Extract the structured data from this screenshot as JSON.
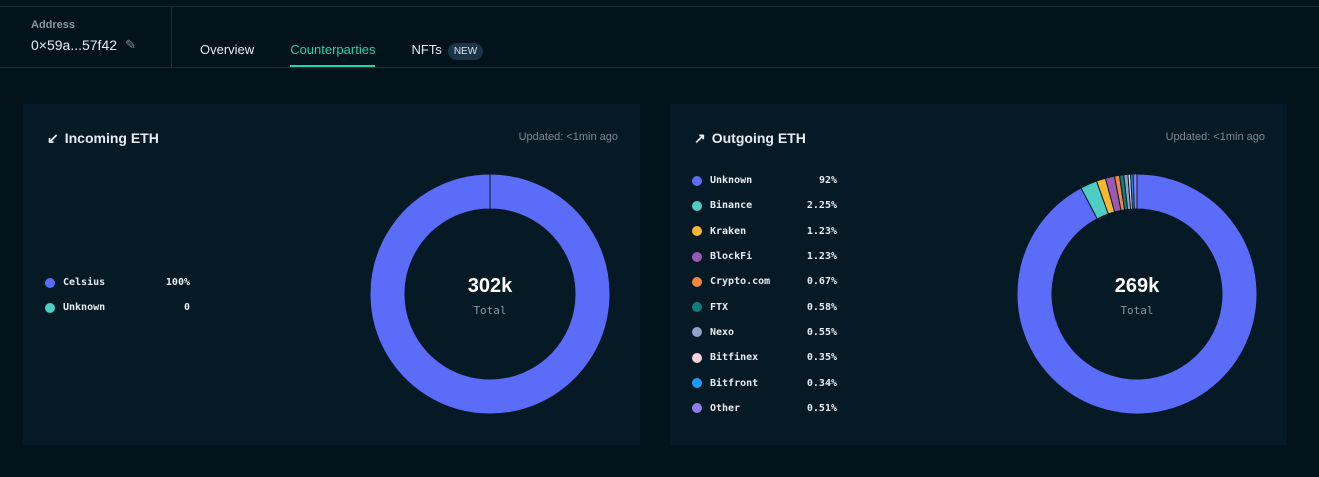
{
  "header": {
    "address_label": "Address",
    "address": "0×59a...57f42",
    "tabs": [
      {
        "label": "Overview"
      },
      {
        "label": "Counterparties",
        "active": true
      },
      {
        "label": "NFTs",
        "badge": "NEW"
      }
    ]
  },
  "incoming": {
    "title": "Incoming ETH",
    "updated": "Updated: <1min ago",
    "total": "302k",
    "total_label": "Total",
    "items": [
      {
        "name": "Celsius",
        "value": "100%",
        "pct": 100,
        "color": "#5b6cf9"
      },
      {
        "name": "Unknown",
        "value": "0",
        "pct": 0,
        "color": "#4ecdc4"
      }
    ]
  },
  "outgoing": {
    "title": "Outgoing ETH",
    "updated": "Updated: <1min ago",
    "total": "269k",
    "total_label": "Total",
    "items": [
      {
        "name": "Unknown",
        "value": "92%",
        "pct": 92,
        "color": "#5b6cf9"
      },
      {
        "name": "Binance",
        "value": "2.25%",
        "pct": 2.25,
        "color": "#4ecdc4"
      },
      {
        "name": "Kraken",
        "value": "1.23%",
        "pct": 1.23,
        "color": "#f6b731"
      },
      {
        "name": "BlockFi",
        "value": "1.23%",
        "pct": 1.23,
        "color": "#9b59b6"
      },
      {
        "name": "Crypto.com",
        "value": "0.67%",
        "pct": 0.67,
        "color": "#f5853f"
      },
      {
        "name": "FTX",
        "value": "0.58%",
        "pct": 0.58,
        "color": "#0e7c7b"
      },
      {
        "name": "Nexo",
        "value": "0.55%",
        "pct": 0.55,
        "color": "#8fa3c8"
      },
      {
        "name": "Bitfinex",
        "value": "0.35%",
        "pct": 0.35,
        "color": "#ffd1dc"
      },
      {
        "name": "Bitfront",
        "value": "0.34%",
        "pct": 0.34,
        "color": "#1a9cff"
      },
      {
        "name": "Other",
        "value": "0.51%",
        "pct": 0.51,
        "color": "#8c7cf0"
      }
    ]
  }
}
